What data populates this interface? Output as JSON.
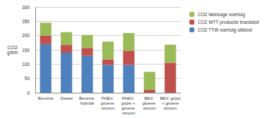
{
  "chart_data": {
    "type": "bar",
    "stacked": true,
    "grid": true,
    "legend": "right",
    "y_label": "CO2\ng/km",
    "categories": [
      "Benzine",
      "Diesel",
      "Benzine hybride",
      "PHEV, groene stroom",
      "PHEV, grijze + groene stroom",
      "BEV, groene stroom",
      "BEV, grijze + groene stroom"
    ],
    "series": [
      {
        "name": "CO2 TTW voertuig uitstoot",
        "color": "#4f81bd",
        "values": [
          170,
          140,
          130,
          97,
          97,
          0,
          0
        ]
      },
      {
        "name": "CO2 WTT productie brandstof",
        "color": "#c0504d",
        "values": [
          30,
          27,
          27,
          20,
          50,
          10,
          105
        ]
      },
      {
        "name": "CO2 fabricage voertuig",
        "color": "#9bbb59",
        "values": [
          45,
          45,
          45,
          62,
          62,
          63,
          63
        ]
      }
    ],
    "ylim": [
      0,
      300
    ],
    "yticks": [
      0,
      50,
      100,
      150,
      200,
      250,
      300
    ]
  }
}
